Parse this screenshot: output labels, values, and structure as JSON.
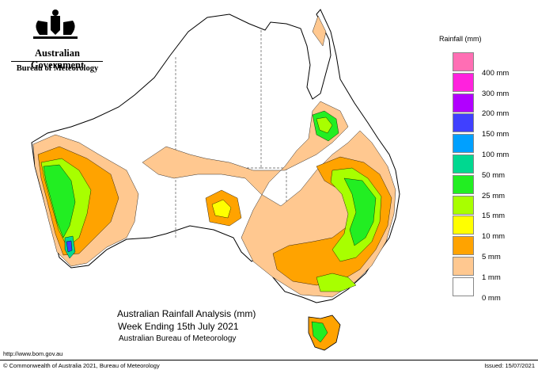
{
  "branding": {
    "government": "Australian Government",
    "bureau": "Bureau of Meteorology",
    "crest_icon": "coat-of-arms-icon"
  },
  "legend": {
    "title": "Rainfall (mm)",
    "entries": [
      {
        "label": "",
        "color": "#ff6eb4"
      },
      {
        "label": "400 mm",
        "color": "#ff22dd"
      },
      {
        "label": "300 mm",
        "color": "#b100ff"
      },
      {
        "label": "200 mm",
        "color": "#4040ff"
      },
      {
        "label": "150 mm",
        "color": "#00a0ff"
      },
      {
        "label": "100 mm",
        "color": "#00d890"
      },
      {
        "label": "50 mm",
        "color": "#22ee22"
      },
      {
        "label": "25 mm",
        "color": "#a8ff00"
      },
      {
        "label": "15 mm",
        "color": "#ffff00"
      },
      {
        "label": "10 mm",
        "color": "#ffa300"
      },
      {
        "label": "5 mm",
        "color": "#ffc890"
      },
      {
        "label": "1 mm",
        "color": "#ffffff"
      },
      {
        "label": "0 mm",
        "color": ""
      }
    ]
  },
  "map_title": {
    "line1": "Australian Rainfall Analysis (mm)",
    "line2": "Week Ending 15th July 2021",
    "line3": "Australian Bureau of Meteorology"
  },
  "footer": {
    "url": "http://www.bom.gov.au",
    "copyright": "© Commonwealth of Australia 2021, Bureau of Meteorology",
    "issued": "Issued: 15/07/2021"
  }
}
